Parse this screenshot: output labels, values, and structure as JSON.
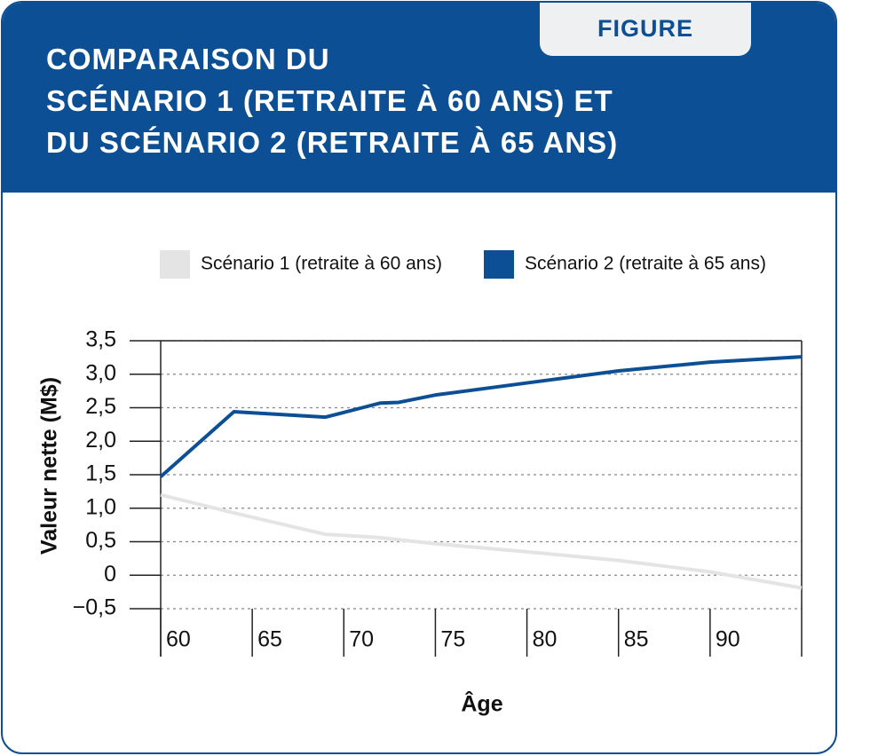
{
  "tab": "FIGURE",
  "chart_data": {
    "type": "line",
    "title": [
      "COMPARAISON DU",
      "SCÉNARIO 1 (RETRAITE À 60 ANS) ET",
      "DU SCÉNARIO 2 (RETRAITE À 65 ANS)"
    ],
    "x_label": "Âge",
    "y_label": "Valeur nette (M$)",
    "x": [
      60,
      64,
      69,
      71,
      72,
      73,
      75,
      80,
      85,
      90,
      95
    ],
    "series": [
      {
        "name": "Scénario 1 (retraite à 60 ans)",
        "color": "#e4e4e4",
        "values": [
          1.2,
          0.93,
          0.61,
          0.58,
          0.56,
          0.53,
          0.47,
          0.35,
          0.22,
          0.05,
          -0.19
        ]
      },
      {
        "name": "Scénario 2 (retraite à 65 ans)",
        "color": "#0d4f94",
        "values": [
          1.47,
          2.44,
          2.36,
          2.5,
          2.57,
          2.58,
          2.69,
          2.87,
          3.05,
          3.18,
          3.26
        ]
      }
    ],
    "xlim": [
      60,
      95
    ],
    "xticks": [
      60,
      65,
      70,
      75,
      80,
      85,
      90
    ],
    "ylim": [
      -0.5,
      3.5
    ],
    "yticks": [
      {
        "value": -0.5,
        "label": "−0,5"
      },
      0,
      {
        "value": 0.5,
        "label": "0,5"
      },
      {
        "value": 1.0,
        "label": "1,0"
      },
      {
        "value": 1.5,
        "label": "1,5"
      },
      {
        "value": 2.0,
        "label": "2,0"
      },
      {
        "value": 2.5,
        "label": "2,5"
      },
      {
        "value": 3.0,
        "label": "3,0"
      },
      {
        "value": 3.5,
        "label": "3,5"
      }
    ],
    "grid": true
  }
}
